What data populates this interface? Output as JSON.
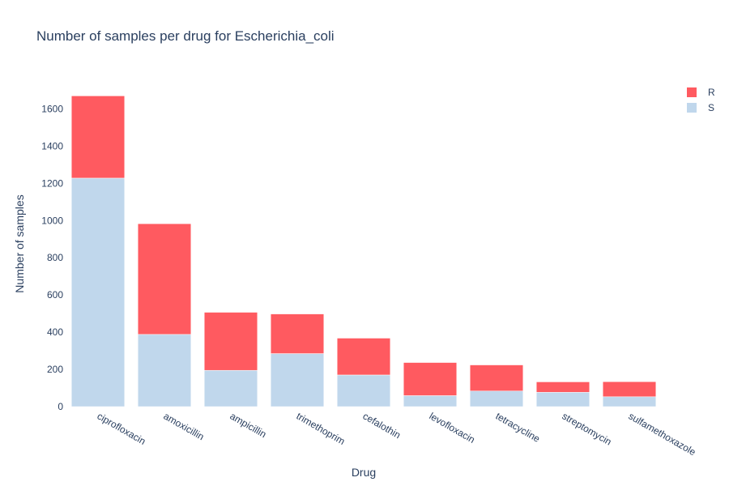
{
  "chart_data": {
    "type": "bar",
    "barmode": "stack",
    "title": "Number of samples per drug for Escherichia_coli",
    "xlabel": "Drug",
    "ylabel": "Number of samples",
    "ylim": [
      0,
      1750
    ],
    "yticks": [
      0,
      200,
      400,
      600,
      800,
      1000,
      1200,
      1400,
      1600
    ],
    "grid": false,
    "legend": "top-right",
    "categories": [
      "ciprofloxacin",
      "amoxicillin",
      "ampicillin",
      "trimethoprim",
      "cefalothin",
      "levofloxacin",
      "tetracycline",
      "streptomycin",
      "sulfamethoxazole"
    ],
    "series": [
      {
        "name": "S",
        "color": "#c0d7ec",
        "values": [
          1228,
          388,
          195,
          285,
          170,
          59,
          84,
          77,
          53
        ]
      },
      {
        "name": "R",
        "color": "#ff5a60",
        "values": [
          442,
          595,
          312,
          213,
          198,
          178,
          140,
          56,
          81
        ]
      }
    ],
    "legend_order": [
      "R",
      "S"
    ]
  }
}
